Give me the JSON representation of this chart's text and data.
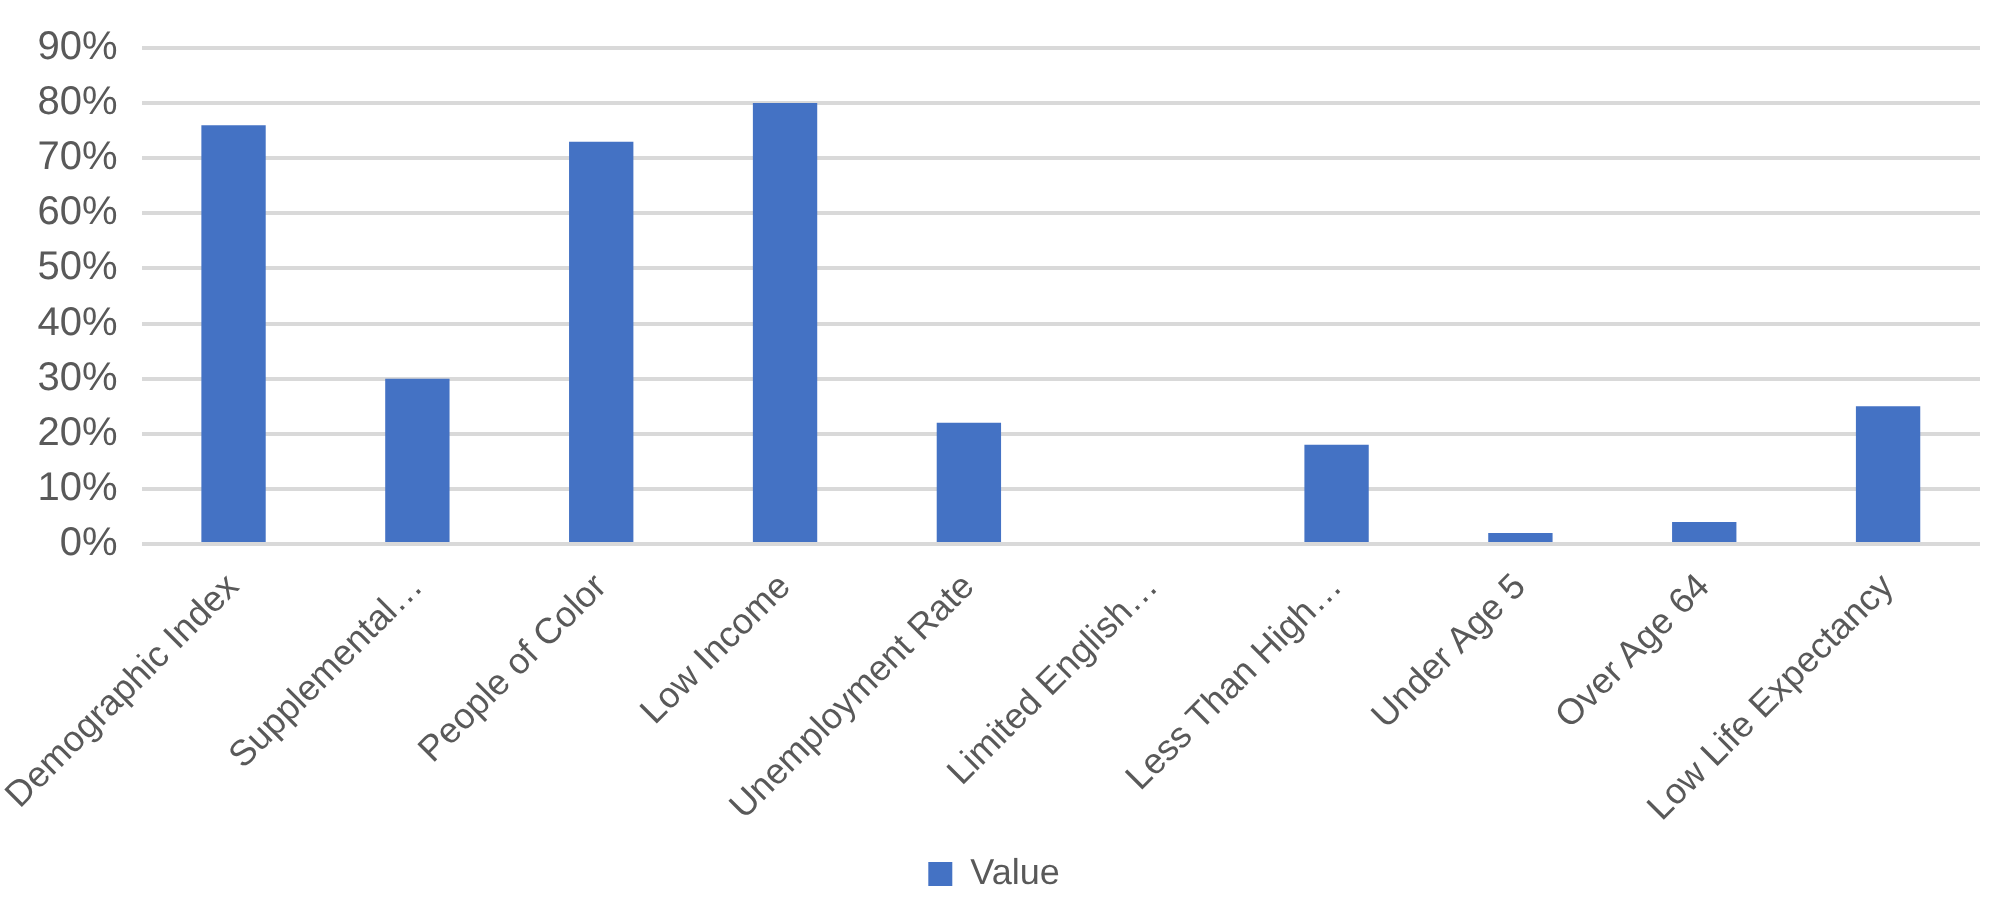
{
  "chart_data": {
    "type": "bar",
    "categories": [
      "Demographic Index",
      "Supplemental…",
      "People of Color",
      "Low Income",
      "Unemployment Rate",
      "Limited English…",
      "Less Than High…",
      "Under Age 5",
      "Over Age 64",
      "Low Life Expectancy"
    ],
    "series": [
      {
        "name": "Value",
        "color": "#4472c4",
        "values": [
          76,
          30,
          73,
          80,
          22,
          0,
          18,
          2,
          4,
          25
        ]
      }
    ],
    "ylim": [
      0,
      90
    ],
    "yticks": [
      {
        "value": 0,
        "label": "0%"
      },
      {
        "value": 10,
        "label": "10%"
      },
      {
        "value": 20,
        "label": "20%"
      },
      {
        "value": 30,
        "label": "30%"
      },
      {
        "value": 40,
        "label": "40%"
      },
      {
        "value": 50,
        "label": "50%"
      },
      {
        "value": 60,
        "label": "60%"
      },
      {
        "value": 70,
        "label": "70%"
      },
      {
        "value": 80,
        "label": "80%"
      },
      {
        "value": 90,
        "label": "90%"
      }
    ],
    "grid": "y",
    "legend": "bottom"
  }
}
